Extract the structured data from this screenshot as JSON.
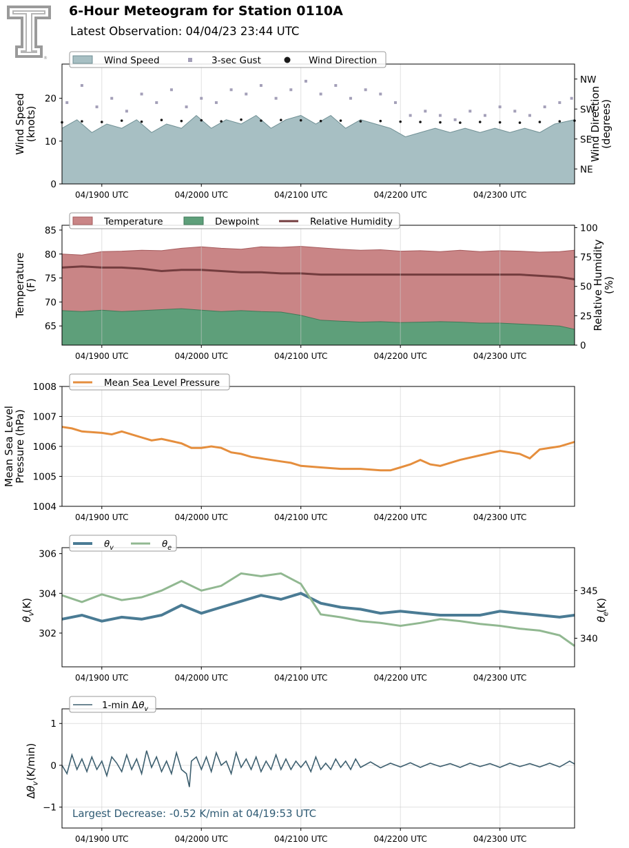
{
  "header": {
    "title": "6-Hour Meteogram for Station 0110A",
    "subtitle": "Latest Observation: 04/04/23 23:44 UTC",
    "logo_mark": "®"
  },
  "colors": {
    "wind": "#a7bfc3",
    "wind_edge": "#6f8f94",
    "gust": "#a39fb8",
    "direction": "#1a1a1a",
    "temperature": "#c98586",
    "temperature_edge": "#a55a5c",
    "dewpoint": "#5e9f7a",
    "dewpoint_edge": "#3f7a58",
    "rh": "#733c3e",
    "pressure": "#e58e3d",
    "theta_v": "#4a7b94",
    "theta_e": "#91b891",
    "dtheta": "#3c5e6e",
    "annotation": "#2e5a73"
  },
  "chart_data": [
    {
      "type": "area",
      "name": "wind",
      "xlim": [
        18.6,
        23.75
      ],
      "ylim": [
        0,
        28
      ],
      "y2lim": [
        0,
        360
      ],
      "ylabel": "Wind Speed\n(knots)",
      "y2label": "Wind Direction\n(degrees)",
      "yticks": [
        0,
        10,
        20
      ],
      "y2ticks": [
        {
          "value": 45,
          "label": "NE"
        },
        {
          "value": 135,
          "label": "SE"
        },
        {
          "value": 225,
          "label": "SW"
        },
        {
          "value": 315,
          "label": "NW"
        }
      ],
      "xticks": [
        {
          "value": 19,
          "label": "04/1900 UTC"
        },
        {
          "value": 20,
          "label": "04/2000 UTC"
        },
        {
          "value": 21,
          "label": "04/2100 UTC"
        },
        {
          "value": 22,
          "label": "04/2200 UTC"
        },
        {
          "value": 23,
          "label": "04/2300 UTC"
        }
      ],
      "legend": [
        "Wind Speed",
        "3-sec Gust",
        "Wind Direction"
      ],
      "legend_placement": "top-left, above axes",
      "series": [
        {
          "name": "Wind Speed",
          "kind": "area",
          "x": [
            18.6,
            18.75,
            18.9,
            19.05,
            19.2,
            19.35,
            19.5,
            19.65,
            19.8,
            19.95,
            20.1,
            20.25,
            20.4,
            20.55,
            20.7,
            20.85,
            21.0,
            21.15,
            21.3,
            21.45,
            21.6,
            21.75,
            21.9,
            22.05,
            22.2,
            22.35,
            22.5,
            22.65,
            22.8,
            22.95,
            23.1,
            23.25,
            23.4,
            23.55,
            23.75
          ],
          "y": [
            13,
            15,
            12,
            14,
            13,
            15,
            12,
            14,
            13,
            16,
            13,
            15,
            14,
            16,
            13,
            15,
            16,
            14,
            16,
            13,
            15,
            14,
            13,
            11,
            12,
            13,
            12,
            13,
            12,
            13,
            12,
            13,
            12,
            14,
            15
          ]
        },
        {
          "name": "3-sec Gust",
          "kind": "scatter",
          "x": [
            18.65,
            18.8,
            18.95,
            19.1,
            19.25,
            19.4,
            19.55,
            19.7,
            19.85,
            20.0,
            20.15,
            20.3,
            20.45,
            20.6,
            20.75,
            20.9,
            21.05,
            21.2,
            21.35,
            21.5,
            21.65,
            21.8,
            21.95,
            22.1,
            22.25,
            22.4,
            22.55,
            22.7,
            22.85,
            23.0,
            23.15,
            23.3,
            23.45,
            23.6,
            23.72
          ],
          "y": [
            19,
            23,
            18,
            20,
            17,
            21,
            19,
            22,
            18,
            20,
            19,
            22,
            21,
            23,
            20,
            22,
            24,
            21,
            23,
            20,
            22,
            21,
            19,
            16,
            17,
            16,
            15,
            17,
            16,
            18,
            17,
            16,
            18,
            19,
            20
          ]
        },
        {
          "name": "Wind Direction",
          "kind": "scatter",
          "y_axis": "right",
          "x": [
            18.6,
            18.8,
            19.0,
            19.2,
            19.4,
            19.6,
            19.8,
            20.0,
            20.2,
            20.4,
            20.6,
            20.8,
            21.0,
            21.2,
            21.4,
            21.6,
            21.8,
            22.0,
            22.2,
            22.4,
            22.6,
            22.8,
            23.0,
            23.2,
            23.4,
            23.6,
            23.75
          ],
          "y": [
            185,
            188,
            186,
            190,
            187,
            192,
            189,
            191,
            188,
            193,
            190,
            192,
            191,
            189,
            190,
            188,
            189,
            187,
            186,
            185,
            184,
            186,
            185,
            184,
            186,
            188,
            190
          ]
        }
      ]
    },
    {
      "type": "area",
      "name": "temperature",
      "xlim": [
        18.6,
        23.75
      ],
      "ylim": [
        61,
        86
      ],
      "y2lim": [
        0,
        102
      ],
      "ylabel": "Temperature\n(F)",
      "y2label": "Relative Humidity\n(%)",
      "yticks": [
        65,
        70,
        75,
        80,
        85
      ],
      "y2ticks": [
        0,
        25,
        50,
        75,
        100
      ],
      "xticks": [
        {
          "value": 19,
          "label": "04/1900 UTC"
        },
        {
          "value": 20,
          "label": "04/2000 UTC"
        },
        {
          "value": 21,
          "label": "04/2100 UTC"
        },
        {
          "value": 22,
          "label": "04/2200 UTC"
        },
        {
          "value": 23,
          "label": "04/2300 UTC"
        }
      ],
      "legend": [
        "Temperature",
        "Dewpoint",
        "Relative Humidity"
      ],
      "legend_placement": "top-left, above axes",
      "series": [
        {
          "name": "Temperature",
          "kind": "area",
          "x": [
            18.6,
            18.8,
            19.0,
            19.2,
            19.4,
            19.6,
            19.8,
            20.0,
            20.2,
            20.4,
            20.6,
            20.8,
            21.0,
            21.2,
            21.4,
            21.6,
            21.8,
            22.0,
            22.2,
            22.4,
            22.6,
            22.8,
            23.0,
            23.2,
            23.4,
            23.6,
            23.75
          ],
          "y": [
            80.0,
            79.8,
            80.5,
            80.6,
            80.8,
            80.7,
            81.2,
            81.5,
            81.2,
            81.0,
            81.5,
            81.4,
            81.6,
            81.3,
            81.0,
            80.8,
            80.9,
            80.6,
            80.7,
            80.5,
            80.8,
            80.5,
            80.7,
            80.6,
            80.4,
            80.5,
            80.8
          ]
        },
        {
          "name": "Dewpoint",
          "kind": "area",
          "x": [
            18.6,
            18.8,
            19.0,
            19.2,
            19.4,
            19.6,
            19.8,
            20.0,
            20.2,
            20.4,
            20.6,
            20.8,
            21.0,
            21.2,
            21.4,
            21.6,
            21.8,
            22.0,
            22.2,
            22.4,
            22.6,
            22.8,
            23.0,
            23.2,
            23.4,
            23.6,
            23.75
          ],
          "y": [
            68.2,
            68.0,
            68.3,
            68.0,
            68.2,
            68.4,
            68.6,
            68.3,
            68.0,
            68.2,
            68.0,
            67.9,
            67.2,
            66.2,
            66.0,
            65.8,
            65.9,
            65.7,
            65.8,
            65.9,
            65.8,
            65.6,
            65.6,
            65.4,
            65.2,
            65.0,
            64.3
          ]
        },
        {
          "name": "Relative Humidity",
          "kind": "line",
          "y_axis": "right",
          "x": [
            18.6,
            18.8,
            19.0,
            19.2,
            19.4,
            19.6,
            19.8,
            20.0,
            20.2,
            20.4,
            20.6,
            20.8,
            21.0,
            21.2,
            21.4,
            21.6,
            21.8,
            22.0,
            22.2,
            22.4,
            22.6,
            22.8,
            23.0,
            23.2,
            23.4,
            23.6,
            23.75
          ],
          "y": [
            66,
            67,
            66,
            66,
            65,
            63,
            64,
            64,
            63,
            62,
            62,
            61,
            61,
            60,
            60,
            60,
            60,
            60,
            60,
            60,
            60,
            60,
            60,
            60,
            59,
            58,
            56
          ]
        }
      ]
    },
    {
      "type": "line",
      "name": "pressure",
      "xlim": [
        18.6,
        23.75
      ],
      "ylim": [
        1004,
        1008
      ],
      "ylabel": "Mean Sea Level\nPressure (hPa)",
      "yticks": [
        1004,
        1005,
        1006,
        1007,
        1008
      ],
      "xticks": [
        {
          "value": 19,
          "label": "04/1900 UTC"
        },
        {
          "value": 20,
          "label": "04/2000 UTC"
        },
        {
          "value": 21,
          "label": "04/2100 UTC"
        },
        {
          "value": 22,
          "label": "04/2200 UTC"
        },
        {
          "value": 23,
          "label": "04/2300 UTC"
        }
      ],
      "legend": [
        "Mean Sea Level Pressure"
      ],
      "legend_placement": "top-left, above axes",
      "series": [
        {
          "name": "Mean Sea Level Pressure",
          "kind": "line",
          "x": [
            18.6,
            18.7,
            18.8,
            19.0,
            19.1,
            19.2,
            19.4,
            19.5,
            19.6,
            19.8,
            19.9,
            20.0,
            20.1,
            20.2,
            20.3,
            20.4,
            20.5,
            20.6,
            20.8,
            20.9,
            21.0,
            21.2,
            21.4,
            21.6,
            21.8,
            21.9,
            22.0,
            22.1,
            22.2,
            22.3,
            22.4,
            22.5,
            22.6,
            22.8,
            23.0,
            23.2,
            23.3,
            23.4,
            23.6,
            23.75
          ],
          "y": [
            1006.65,
            1006.6,
            1006.5,
            1006.45,
            1006.4,
            1006.5,
            1006.3,
            1006.2,
            1006.25,
            1006.1,
            1005.95,
            1005.95,
            1006.0,
            1005.95,
            1005.8,
            1005.75,
            1005.65,
            1005.6,
            1005.5,
            1005.45,
            1005.35,
            1005.3,
            1005.25,
            1005.25,
            1005.2,
            1005.2,
            1005.3,
            1005.4,
            1005.55,
            1005.4,
            1005.35,
            1005.45,
            1005.55,
            1005.7,
            1005.85,
            1005.75,
            1005.6,
            1005.9,
            1006.0,
            1006.15
          ]
        }
      ]
    },
    {
      "type": "line",
      "name": "theta",
      "xlim": [
        18.6,
        23.75
      ],
      "ylim": [
        300.3,
        306.3
      ],
      "y2lim": [
        337.0,
        349.5
      ],
      "ylabel": "θv (K)",
      "y2label": "θe (K)",
      "yticks": [
        302,
        304,
        306
      ],
      "y2ticks": [
        340,
        345
      ],
      "xticks": [
        {
          "value": 19,
          "label": "04/1900 UTC"
        },
        {
          "value": 20,
          "label": "04/2000 UTC"
        },
        {
          "value": 21,
          "label": "04/2100 UTC"
        },
        {
          "value": 22,
          "label": "04/2200 UTC"
        },
        {
          "value": 23,
          "label": "04/2300 UTC"
        }
      ],
      "legend": [
        "θv",
        "θe"
      ],
      "legend_placement": "top-left, above axes",
      "series": [
        {
          "name": "θv",
          "kind": "line",
          "x": [
            18.6,
            18.8,
            19.0,
            19.2,
            19.4,
            19.6,
            19.8,
            20.0,
            20.2,
            20.4,
            20.6,
            20.8,
            21.0,
            21.2,
            21.4,
            21.6,
            21.8,
            22.0,
            22.2,
            22.4,
            22.6,
            22.8,
            23.0,
            23.2,
            23.4,
            23.6,
            23.75
          ],
          "y": [
            302.7,
            302.9,
            302.6,
            302.8,
            302.7,
            302.9,
            303.4,
            303.0,
            303.3,
            303.6,
            303.9,
            303.7,
            304.0,
            303.5,
            303.3,
            303.2,
            303.0,
            303.1,
            303.0,
            302.9,
            302.9,
            302.9,
            303.1,
            303.0,
            302.9,
            302.8,
            302.9
          ]
        },
        {
          "name": "θe",
          "kind": "line",
          "y_axis": "right",
          "x": [
            18.6,
            18.8,
            19.0,
            19.2,
            19.4,
            19.6,
            19.8,
            20.0,
            20.2,
            20.4,
            20.6,
            20.8,
            21.0,
            21.2,
            21.4,
            21.6,
            21.8,
            22.0,
            22.2,
            22.4,
            22.6,
            22.8,
            23.0,
            23.2,
            23.4,
            23.6,
            23.75
          ],
          "y": [
            344.5,
            343.8,
            344.6,
            344.0,
            344.3,
            345.0,
            346.0,
            345.0,
            345.5,
            346.8,
            346.5,
            346.8,
            345.7,
            342.5,
            342.2,
            341.8,
            341.6,
            341.3,
            341.6,
            342.0,
            341.8,
            341.5,
            341.3,
            341.0,
            340.8,
            340.3,
            339.2
          ]
        }
      ]
    },
    {
      "type": "line",
      "name": "dtheta",
      "xlim": [
        18.6,
        23.75
      ],
      "ylim": [
        -1.5,
        1.35
      ],
      "ylabel": "Δθv (K/min)",
      "yticks": [
        -1,
        0,
        1
      ],
      "xticks": [
        {
          "value": 19,
          "label": "04/1900 UTC"
        },
        {
          "value": 20,
          "label": "04/2000 UTC"
        },
        {
          "value": 21,
          "label": "04/2100 UTC"
        },
        {
          "value": 22,
          "label": "04/2200 UTC"
        },
        {
          "value": 23,
          "label": "04/2300 UTC"
        }
      ],
      "legend": [
        "1-min Δθv"
      ],
      "legend_placement": "top-left, above axes",
      "annotation": "Largest Decrease: -0.52 K/min at 04/19:53 UTC",
      "series": [
        {
          "name": "1-min Δθv",
          "kind": "line",
          "x": [
            18.6,
            18.65,
            18.7,
            18.75,
            18.8,
            18.85,
            18.9,
            18.95,
            19.0,
            19.05,
            19.1,
            19.15,
            19.2,
            19.25,
            19.3,
            19.35,
            19.4,
            19.45,
            19.5,
            19.55,
            19.6,
            19.65,
            19.7,
            19.75,
            19.8,
            19.85,
            19.88,
            19.9,
            19.95,
            20.0,
            20.05,
            20.1,
            20.15,
            20.2,
            20.25,
            20.3,
            20.35,
            20.4,
            20.45,
            20.5,
            20.55,
            20.6,
            20.65,
            20.7,
            20.75,
            20.8,
            20.85,
            20.9,
            20.95,
            21.0,
            21.05,
            21.1,
            21.15,
            21.2,
            21.25,
            21.3,
            21.35,
            21.4,
            21.45,
            21.5,
            21.55,
            21.6,
            21.7,
            21.8,
            21.9,
            22.0,
            22.1,
            22.2,
            22.3,
            22.4,
            22.5,
            22.6,
            22.7,
            22.8,
            22.9,
            23.0,
            23.1,
            23.2,
            23.3,
            23.4,
            23.5,
            23.6,
            23.7,
            23.75
          ],
          "y": [
            0.0,
            -0.2,
            0.25,
            -0.1,
            0.15,
            -0.15,
            0.2,
            -0.1,
            0.1,
            -0.25,
            0.2,
            0.05,
            -0.15,
            0.25,
            -0.1,
            0.15,
            -0.2,
            0.35,
            -0.05,
            0.2,
            -0.15,
            0.1,
            -0.2,
            0.3,
            -0.1,
            -0.2,
            -0.52,
            0.1,
            0.2,
            -0.1,
            0.2,
            -0.15,
            0.3,
            0.0,
            0.1,
            -0.2,
            0.3,
            -0.05,
            0.15,
            -0.1,
            0.2,
            -0.15,
            0.1,
            -0.1,
            0.25,
            -0.1,
            0.15,
            -0.1,
            0.1,
            -0.05,
            0.1,
            -0.15,
            0.2,
            -0.1,
            0.05,
            -0.1,
            0.15,
            -0.05,
            0.1,
            -0.1,
            0.15,
            -0.05,
            0.08,
            -0.06,
            0.05,
            -0.04,
            0.06,
            -0.05,
            0.05,
            -0.03,
            0.04,
            -0.05,
            0.05,
            -0.03,
            0.04,
            -0.05,
            0.05,
            -0.03,
            0.04,
            -0.04,
            0.05,
            -0.04,
            0.1,
            0.03
          ]
        }
      ]
    }
  ]
}
